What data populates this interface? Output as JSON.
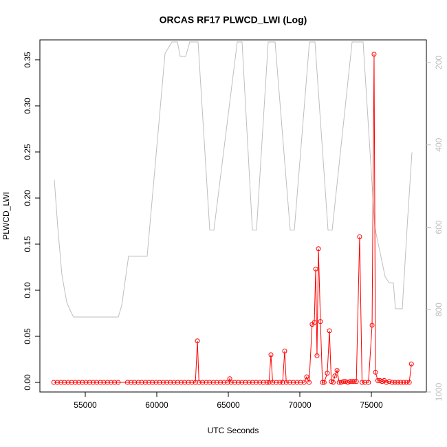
{
  "chart_data": {
    "type": "line",
    "title": "ORCAS RF17 PLWCD_LWI (Log)",
    "xlabel": "UTC Seconds",
    "ylabel": "PLWCD_LWI",
    "xlim": [
      51827,
      78846
    ],
    "xticks": [
      55000,
      60000,
      65000,
      70000,
      75000
    ],
    "ylim": [
      -0.0104,
      0.3716
    ],
    "yticks": [
      {
        "value": 0,
        "label": "0.00"
      },
      {
        "value": 0.05,
        "label": "0.05"
      },
      {
        "value": 0.1,
        "label": "0.10"
      },
      {
        "value": 0.15,
        "label": "0.15"
      },
      {
        "value": 0.2,
        "label": "0.20"
      },
      {
        "value": 0.25,
        "label": "0.25"
      },
      {
        "value": 0.3,
        "label": "0.30"
      },
      {
        "value": 0.35,
        "label": "0.35"
      }
    ],
    "y2lim": [
      1000,
      145
    ],
    "y2ticks": [
      200,
      400,
      600,
      800,
      1000
    ],
    "y2color": "#bebebe",
    "series": [
      {
        "color": "#ff0000",
        "markers": true,
        "x": [
          52800,
          53050,
          53300,
          53550,
          53800,
          54050,
          54300,
          54550,
          54800,
          55050,
          55300,
          55550,
          55800,
          56050,
          56300,
          56550,
          56800,
          57050,
          57300,
          57950,
          58200,
          58450,
          58700,
          58950,
          59200,
          59450,
          59700,
          59950,
          60200,
          60450,
          60700,
          60950,
          61200,
          61450,
          61700,
          61950,
          62200,
          62450,
          62700,
          62840,
          62950,
          63200,
          63450,
          63700,
          63950,
          64200,
          64450,
          64700,
          64950,
          65100,
          65200,
          65450,
          65700,
          65950,
          66200,
          66450,
          66700,
          66950,
          67200,
          67450,
          67700,
          67850,
          67980,
          68100,
          68350,
          68600,
          68800,
          68940,
          69050,
          69300,
          69550,
          69800,
          70050,
          70300,
          70480,
          70650,
          70860,
          71010,
          71110,
          71200,
          71300,
          71440,
          71580,
          71700,
          71920,
          72070,
          72200,
          72330,
          72450,
          72600,
          72750,
          72900,
          73050,
          73200,
          73350,
          73500,
          73650,
          73800,
          73950,
          74180,
          74350,
          74550,
          74800,
          75050,
          75190,
          75290,
          75450,
          75600,
          75750,
          75900,
          76050,
          76250,
          76450,
          76650,
          76850,
          77050,
          77250,
          77450,
          77650,
          77800
        ],
        "values": [
          0,
          0,
          0,
          0,
          0,
          0,
          0,
          0,
          0,
          0,
          0,
          0,
          0,
          0,
          0,
          0,
          0,
          0,
          0,
          0,
          0,
          0,
          0,
          0,
          0,
          0,
          0,
          0,
          0,
          0,
          0,
          0,
          0,
          0,
          0,
          0,
          0,
          0,
          0,
          0.045,
          0,
          0,
          0,
          0,
          0,
          0,
          0,
          0,
          0,
          0.004,
          0,
          0,
          0,
          0,
          0,
          0,
          0,
          0,
          0,
          0,
          0,
          0,
          0.03,
          0,
          0,
          0,
          0,
          0.034,
          0,
          0,
          0,
          0,
          0,
          0,
          0.006,
          0,
          0.063,
          0.065,
          0.123,
          0.029,
          0.145,
          0.066,
          0,
          0,
          0.01,
          0.056,
          0.001,
          0,
          0.007,
          0.013,
          0,
          0,
          0.001,
          0.001,
          0,
          0.001,
          0.001,
          0.001,
          0.001,
          0.158,
          0,
          0,
          0,
          0.062,
          0.356,
          0.011,
          0.002,
          0.002,
          0.001,
          0.002,
          0,
          0.001,
          0,
          0,
          0,
          0,
          0,
          0,
          0,
          0.02
        ]
      },
      {
        "color": "#bebebe",
        "axis": "y2",
        "markers": false,
        "x": [
          52836,
          53077,
          53365,
          53702,
          53990,
          54183,
          57308,
          57548,
          58029,
          59327,
          60577,
          61058,
          61442,
          61635,
          62019,
          62308,
          62885,
          63702,
          63990,
          65625,
          65962,
          66683,
          66971,
          67788,
          68269,
          69327,
          69615,
          70673,
          71058,
          71971,
          72260,
          73654,
          74423,
          75240,
          75962,
          76250,
          76538,
          76683,
          77163,
          77500,
          77837
        ],
        "values": [
          485,
          600,
          715,
          782,
          805,
          818,
          818,
          790,
          670,
          670,
          178,
          150,
          150,
          185,
          185,
          150,
          150,
          607,
          607,
          150,
          150,
          607,
          607,
          150,
          150,
          607,
          607,
          150,
          150,
          607,
          607,
          150,
          150,
          600,
          720,
          735,
          735,
          798,
          798,
          600,
          418
        ]
      }
    ]
  }
}
